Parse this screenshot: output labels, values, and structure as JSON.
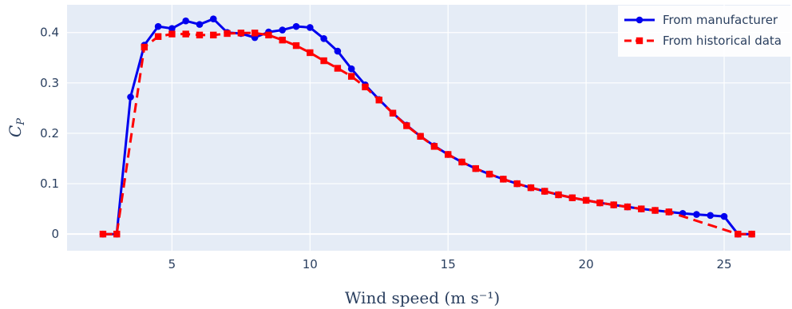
{
  "chart_data": {
    "type": "line",
    "xlabel": "Wind speed (m s⁻¹)",
    "ylabel": "C_P",
    "xlim": [
      1.2,
      27.4
    ],
    "ylim": [
      -0.033,
      0.455
    ],
    "xticks": [
      5,
      10,
      15,
      20,
      25
    ],
    "yticks": [
      0,
      0.1,
      0.2,
      0.3,
      0.4
    ],
    "ytick_labels": [
      "0",
      "0.1",
      "0.2",
      "0.3",
      "0.4"
    ],
    "grid": true,
    "legend_position": "top-right",
    "series": [
      {
        "name": "From manufacturer",
        "color": "#0000ee",
        "dash": "solid",
        "marker": "circle",
        "x": [
          2.5,
          3,
          3.5,
          4,
          4.5,
          5,
          5.5,
          6,
          6.5,
          7,
          7.5,
          8,
          8.5,
          9,
          9.5,
          10,
          10.5,
          11,
          11.5,
          12,
          12.5,
          13,
          13.5,
          14,
          14.5,
          15,
          15.5,
          16,
          16.5,
          17,
          17.5,
          18,
          18.5,
          19,
          19.5,
          20,
          20.5,
          21,
          21.5,
          22,
          22.5,
          23,
          23.5,
          24,
          24.5,
          25,
          25.5,
          26
        ],
        "y": [
          0,
          0,
          0.272,
          0.375,
          0.412,
          0.408,
          0.423,
          0.416,
          0.427,
          0.4,
          0.398,
          0.39,
          0.401,
          0.405,
          0.412,
          0.41,
          0.388,
          0.363,
          0.328,
          0.296,
          0.267,
          0.24,
          0.216,
          0.194,
          0.175,
          0.158,
          0.143,
          0.13,
          0.119,
          0.109,
          0.1,
          0.092,
          0.085,
          0.078,
          0.072,
          0.067,
          0.062,
          0.058,
          0.054,
          0.05,
          0.047,
          0.044,
          0.041,
          0.039,
          0.037,
          0.035,
          0,
          0
        ]
      },
      {
        "name": "From historical data",
        "color": "#ff0000",
        "dash": "dashed",
        "marker": "square",
        "x": [
          2.5,
          3,
          4,
          4.5,
          5,
          5.5,
          6,
          6.5,
          7,
          7.5,
          8,
          8.5,
          9,
          9.5,
          10,
          10.5,
          11,
          11.5,
          12,
          12.5,
          13,
          13.5,
          14,
          14.5,
          15,
          15.5,
          16,
          16.5,
          17,
          17.5,
          18,
          18.5,
          19,
          19.5,
          20,
          20.5,
          21,
          21.5,
          22,
          22.5,
          23,
          25.5,
          26
        ],
        "y": [
          0,
          0,
          0.371,
          0.392,
          0.397,
          0.397,
          0.395,
          0.395,
          0.398,
          0.399,
          0.399,
          0.395,
          0.385,
          0.374,
          0.36,
          0.344,
          0.329,
          0.313,
          0.292,
          0.266,
          0.24,
          0.215,
          0.194,
          0.174,
          0.158,
          0.143,
          0.13,
          0.119,
          0.109,
          0.1,
          0.092,
          0.085,
          0.078,
          0.072,
          0.067,
          0.062,
          0.058,
          0.054,
          0.05,
          0.047,
          0.044,
          0,
          0
        ]
      }
    ]
  }
}
